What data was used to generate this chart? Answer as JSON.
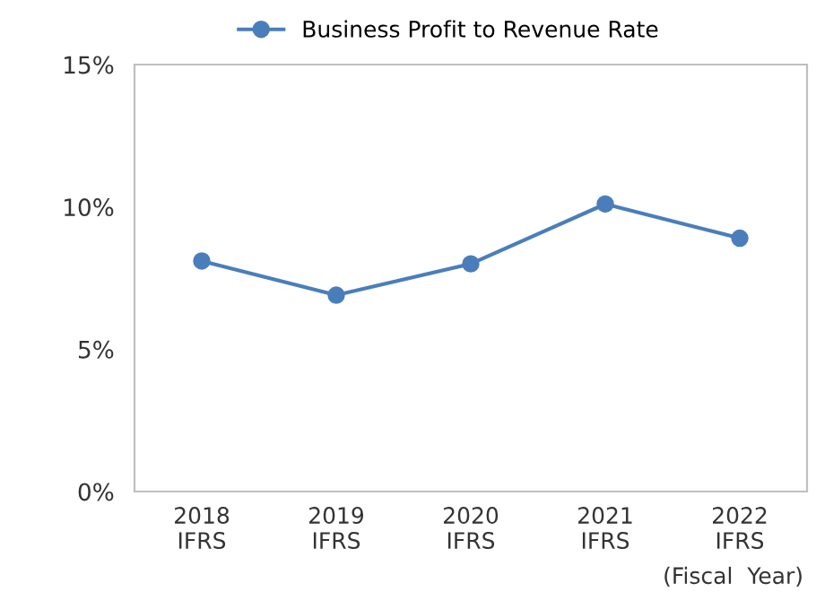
{
  "chart_data": {
    "type": "line",
    "categories": [
      "2018\nIFRS",
      "2019\nIFRS",
      "2020\nIFRS",
      "2021\nIFRS",
      "2022\nIFRS"
    ],
    "series": [
      {
        "name": "Business Profit to Revenue Rate",
        "color": "#4a7ebb",
        "values": [
          8.1,
          6.9,
          8.0,
          10.1,
          8.9
        ]
      }
    ],
    "xlabel": "(Fiscal  Year)",
    "ylim": [
      0,
      15
    ],
    "yticks": [
      {
        "value": 0,
        "label": "0%"
      },
      {
        "value": 5,
        "label": "5%"
      },
      {
        "value": 10,
        "label": "10%"
      },
      {
        "value": 15,
        "label": "15%"
      }
    ],
    "legend": "top",
    "marker": "circle",
    "line_style": "solid",
    "grid": false
  }
}
